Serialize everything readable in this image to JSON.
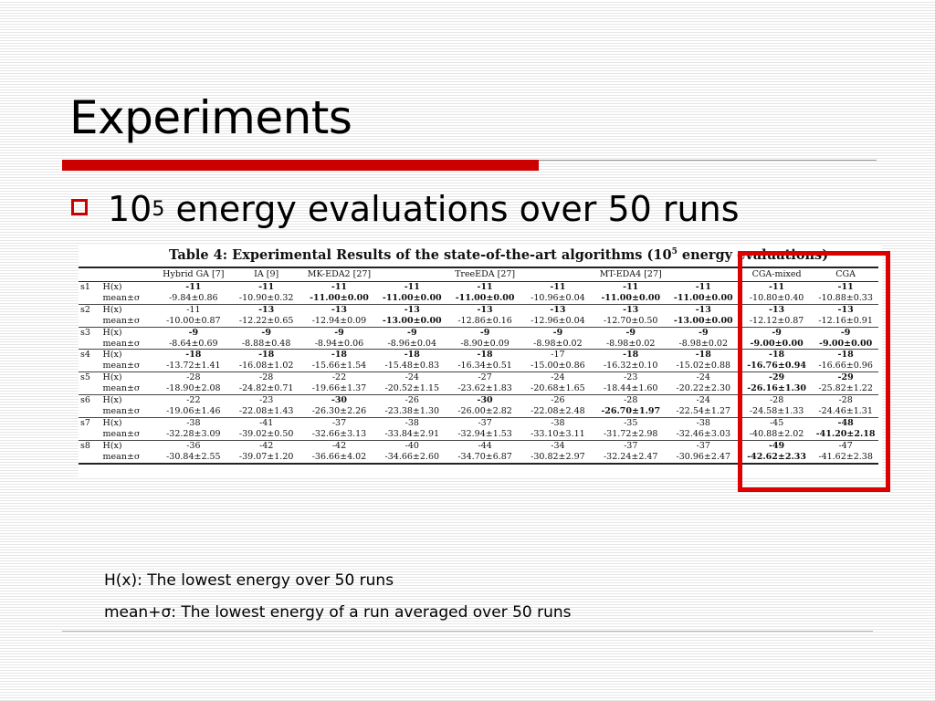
{
  "slide": {
    "title": "Experiments",
    "bullet_prefix": "10",
    "bullet_sup": "5",
    "bullet_rest": " energy evaluations over 50 runs"
  },
  "table": {
    "caption_prefix": "Table 4:  Experimental Results of the state-of-the-art algorithms (10",
    "caption_sup": "5",
    "caption_suffix": " energy evaluations)",
    "headers": [
      "",
      "",
      "Hybrid GA [7]",
      "IA [9]",
      "MK-EDA2 [27]",
      "",
      "TreeEDA [27]",
      "",
      "MT-EDA4 [27]",
      "",
      "CGA-mixed",
      "CGA"
    ],
    "rows": [
      {
        "seq": "s1",
        "h_label": "H(x)",
        "m_label": "mean±σ",
        "h": [
          "-11",
          "-11",
          "-11",
          "-11",
          "-11",
          "-11",
          "-11",
          "-11",
          "-11",
          "-11"
        ],
        "h_bold": [
          true,
          true,
          true,
          true,
          true,
          true,
          true,
          true,
          true,
          true
        ],
        "m": [
          "-9.84±0.86",
          "-10.90±0.32",
          "-11.00±0.00",
          "-11.00±0.00",
          "-11.00±0.00",
          "-10.96±0.04",
          "-11.00±0.00",
          "-11.00±0.00",
          "-10.80±0.40",
          "-10.88±0.33"
        ],
        "m_bold": [
          false,
          false,
          true,
          true,
          true,
          false,
          true,
          true,
          false,
          false
        ]
      },
      {
        "seq": "s2",
        "h_label": "H(x)",
        "m_label": "mean±σ",
        "h": [
          "-11",
          "-13",
          "-13",
          "-13",
          "-13",
          "-13",
          "-13",
          "-13",
          "-13",
          "-13"
        ],
        "h_bold": [
          false,
          true,
          true,
          true,
          true,
          true,
          true,
          true,
          true,
          true
        ],
        "m": [
          "-10.00±0.87",
          "-12.22±0.65",
          "-12.94±0.09",
          "-13.00±0.00",
          "-12.86±0.16",
          "-12.96±0.04",
          "-12.70±0.50",
          "-13.00±0.00",
          "-12.12±0.87",
          "-12.16±0.91"
        ],
        "m_bold": [
          false,
          false,
          false,
          true,
          false,
          false,
          false,
          true,
          false,
          false
        ]
      },
      {
        "seq": "s3",
        "h_label": "H(x)",
        "m_label": "mean±σ",
        "h": [
          "-9",
          "-9",
          "-9",
          "-9",
          "-9",
          "-9",
          "-9",
          "-9",
          "-9",
          "-9"
        ],
        "h_bold": [
          true,
          true,
          true,
          true,
          true,
          true,
          true,
          true,
          true,
          true
        ],
        "m": [
          "-8.64±0.69",
          "-8.88±0.48",
          "-8.94±0.06",
          "-8.96±0.04",
          "-8.90±0.09",
          "-8.98±0.02",
          "-8.98±0.02",
          "-8.98±0.02",
          "-9.00±0.00",
          "-9.00±0.00"
        ],
        "m_bold": [
          false,
          false,
          false,
          false,
          false,
          false,
          false,
          false,
          true,
          true
        ]
      },
      {
        "seq": "s4",
        "h_label": "H(x)",
        "m_label": "mean±σ",
        "h": [
          "-18",
          "-18",
          "-18",
          "-18",
          "-18",
          "-17",
          "-18",
          "-18",
          "-18",
          "-18"
        ],
        "h_bold": [
          true,
          true,
          true,
          true,
          true,
          false,
          true,
          true,
          true,
          true
        ],
        "m": [
          "-13.72±1.41",
          "-16.08±1.02",
          "-15.66±1.54",
          "-15.48±0.83",
          "-16.34±0.51",
          "-15.00±0.86",
          "-16.32±0.10",
          "-15.02±0.88",
          "-16.76±0.94",
          "-16.66±0.96"
        ],
        "m_bold": [
          false,
          false,
          false,
          false,
          false,
          false,
          false,
          false,
          true,
          false
        ]
      },
      {
        "seq": "s5",
        "h_label": "H(x)",
        "m_label": "mean±σ",
        "h": [
          "-28",
          "-28",
          "-22",
          "-24",
          "-27",
          "-24",
          "-23",
          "-24",
          "-29",
          "-29"
        ],
        "h_bold": [
          false,
          false,
          false,
          false,
          false,
          false,
          false,
          false,
          true,
          true
        ],
        "m": [
          "-18.90±2.08",
          "-24.82±0.71",
          "-19.66±1.37",
          "-20.52±1.15",
          "-23.62±1.83",
          "-20.68±1.65",
          "-18.44±1.60",
          "-20.22±2.30",
          "-26.16±1.30",
          "-25.82±1.22"
        ],
        "m_bold": [
          false,
          false,
          false,
          false,
          false,
          false,
          false,
          false,
          true,
          false
        ]
      },
      {
        "seq": "s6",
        "h_label": "H(x)",
        "m_label": "mean±σ",
        "h": [
          "-22",
          "-23",
          "-30",
          "-26",
          "-30",
          "-26",
          "-28",
          "-24",
          "-28",
          "-28"
        ],
        "h_bold": [
          false,
          false,
          true,
          false,
          true,
          false,
          false,
          false,
          false,
          false
        ],
        "m": [
          "-19.06±1.46",
          "-22.08±1.43",
          "-26.30±2.26",
          "-23.38±1.30",
          "-26.00±2.82",
          "-22.08±2.48",
          "-26.70±1.97",
          "-22.54±1.27",
          "-24.58±1.33",
          "-24.46±1.31"
        ],
        "m_bold": [
          false,
          false,
          false,
          false,
          false,
          false,
          true,
          false,
          false,
          false
        ]
      },
      {
        "seq": "s7",
        "h_label": "H(x)",
        "m_label": "mean±σ",
        "h": [
          "-38",
          "-41",
          "-37",
          "-38",
          "-37",
          "-38",
          "-35",
          "-38",
          "-45",
          "-48"
        ],
        "h_bold": [
          false,
          false,
          false,
          false,
          false,
          false,
          false,
          false,
          false,
          true
        ],
        "m": [
          "-32.28±3.09",
          "-39.02±0.50",
          "-32.66±3.13",
          "-33.84±2.91",
          "-32.94±1.53",
          "-33.10±3.11",
          "-31.72±2.98",
          "-32.46±3.03",
          "-40.88±2.02",
          "-41.20±2.18"
        ],
        "m_bold": [
          false,
          false,
          false,
          false,
          false,
          false,
          false,
          false,
          false,
          true
        ]
      },
      {
        "seq": "s8",
        "h_label": "H(x)",
        "m_label": "mean±σ",
        "h": [
          "-36",
          "-42",
          "-42",
          "-40",
          "-44",
          "-34",
          "-37",
          "-37",
          "-49",
          "-47"
        ],
        "h_bold": [
          false,
          false,
          false,
          false,
          false,
          false,
          false,
          false,
          true,
          false
        ],
        "m": [
          "-30.84±2.55",
          "-39.07±1.20",
          "-36.66±4.02",
          "-34.66±2.60",
          "-34.70±6.87",
          "-30.82±2.97",
          "-32.24±2.47",
          "-30.96±2.47",
          "-42.62±2.33",
          "-41.62±2.38"
        ],
        "m_bold": [
          false,
          false,
          false,
          false,
          false,
          false,
          false,
          false,
          true,
          false
        ]
      }
    ]
  },
  "notes": {
    "line1": "H(x): The lowest energy over 50 runs",
    "line2": "mean+σ: The lowest energy of a run averaged over 50 runs"
  }
}
